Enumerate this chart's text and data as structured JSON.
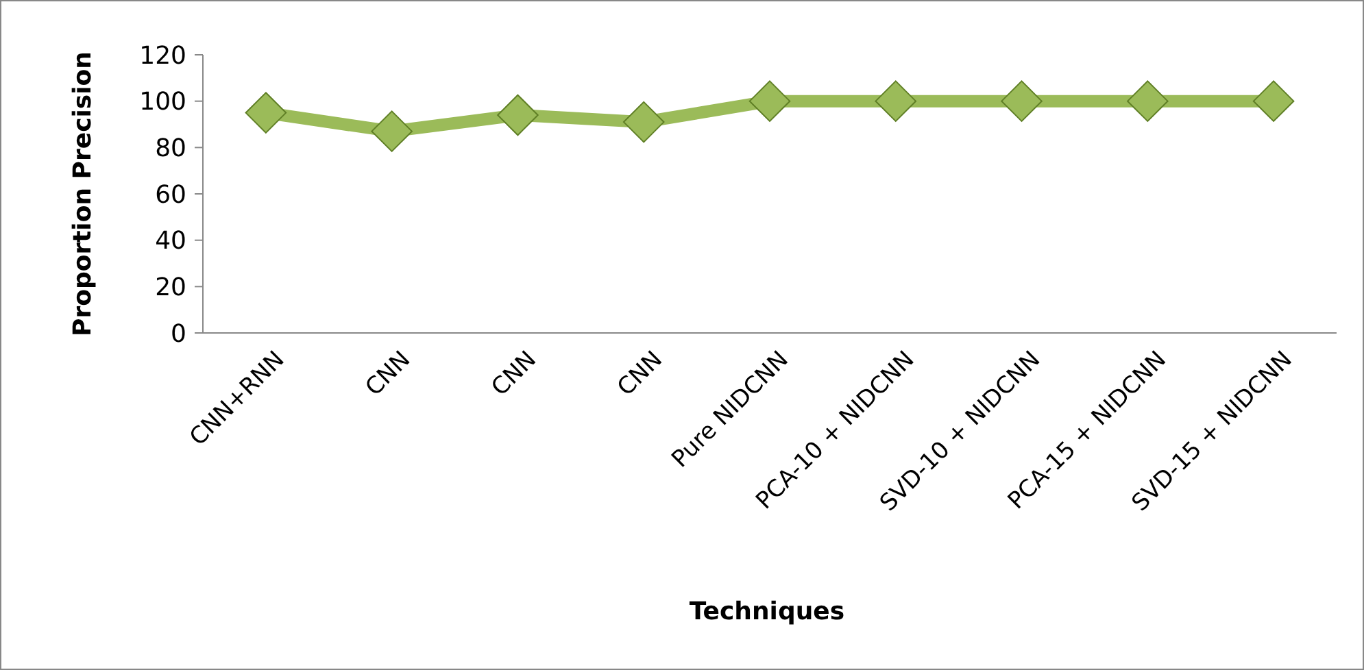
{
  "chart_data": {
    "type": "line",
    "xlabel": "Techniques",
    "ylabel": "Proportion Precision",
    "categories": [
      "CNN+RNN",
      "CNN",
      "CNN",
      "CNN",
      "Pure NIDCNN",
      "PCA-10 + NIDCNN",
      "SVD-10 + NIDCNN",
      "PCA-15 + NIDCNN",
      "SVD-15 + NIDCNN"
    ],
    "series": [
      {
        "color": "#9bbb59",
        "values": [
          95,
          87,
          94,
          91,
          100,
          100,
          100,
          100,
          100
        ]
      }
    ],
    "ylim": [
      0,
      120
    ],
    "yticks": [
      0,
      20,
      40,
      60,
      80,
      100,
      120
    ],
    "grid": false,
    "marker": "diamond",
    "line_style": "solid"
  }
}
